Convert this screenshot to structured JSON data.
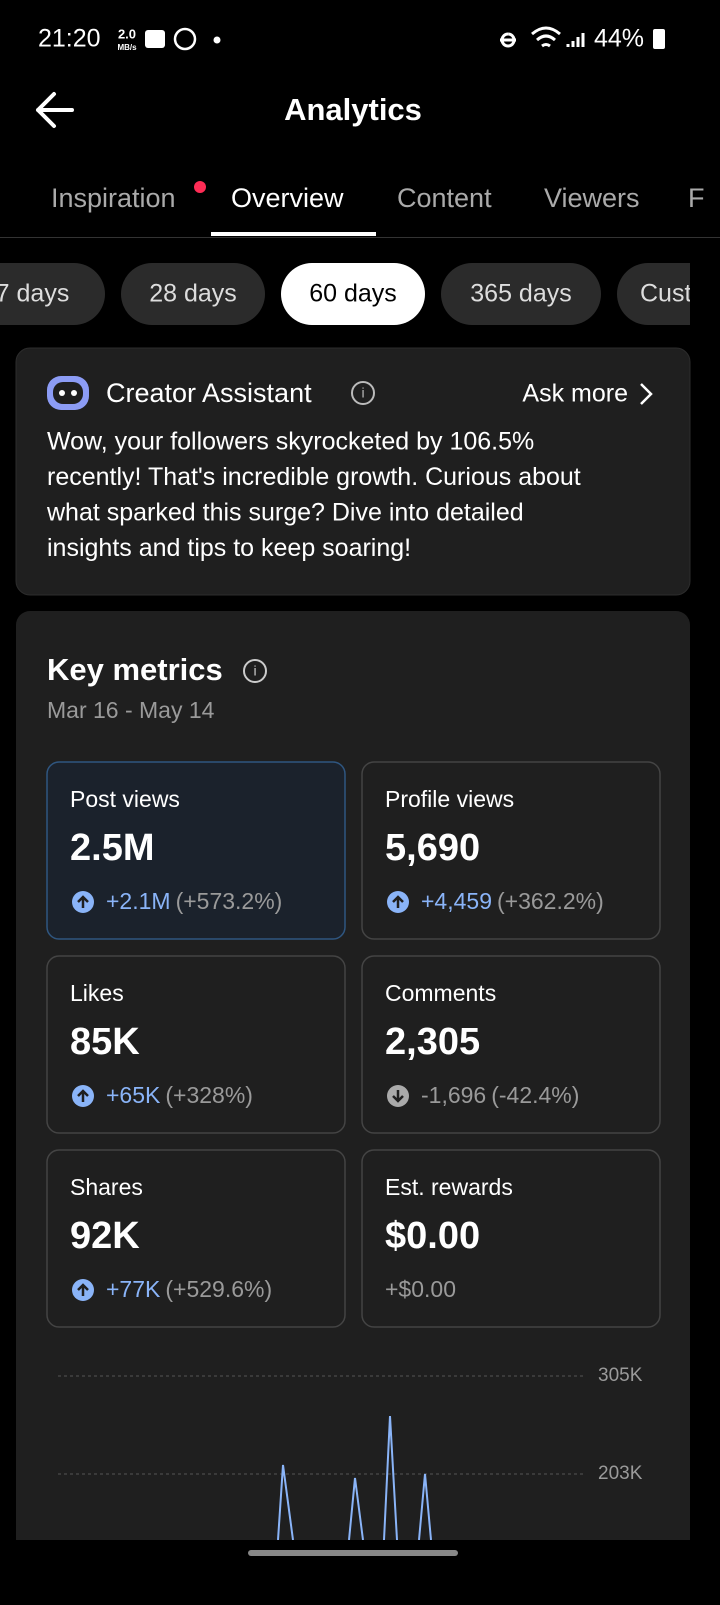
{
  "status_bar": {
    "time": "21:20",
    "speed": "2.0",
    "speed_unit": "MB/s",
    "battery": "44%"
  },
  "header": {
    "title": "Analytics"
  },
  "tabs": [
    "Inspiration",
    "Overview",
    "Content",
    "Viewers",
    "F"
  ],
  "ranges": [
    "7 days",
    "28 days",
    "60 days",
    "365 days",
    "Custom"
  ],
  "assistant": {
    "title": "Creator Assistant",
    "action": "Ask more",
    "lines": [
      "Wow, your followers skyrocketed by 106.5%",
      "recently! That's incredible growth. Curious about",
      "what sparked this surge? Dive into detailed",
      "insights and tips to keep soaring!"
    ]
  },
  "key_metrics": {
    "title": "Key metrics",
    "period": "Mar 16 - May 14",
    "cards": [
      {
        "label": "Post views",
        "value": "2.5M",
        "change": "+2.1M",
        "pct": "(+573.2%)",
        "trend": "up"
      },
      {
        "label": "Profile views",
        "value": "5,690",
        "change": "+4,459",
        "pct": "(+362.2%)",
        "trend": "up"
      },
      {
        "label": "Likes",
        "value": "85K",
        "change": "+65K",
        "pct": "(+328%)",
        "trend": "up"
      },
      {
        "label": "Comments",
        "value": "2,305",
        "change": "-1,696",
        "pct": "(-42.4%)",
        "trend": "down"
      },
      {
        "label": "Shares",
        "value": "92K",
        "change": "+77K",
        "pct": "(+529.6%)",
        "trend": "up"
      },
      {
        "label": "Est. rewards",
        "value": "$0.00",
        "change": "+$0.00"
      }
    ],
    "chart_ticks": [
      "305K",
      "203K"
    ]
  }
}
